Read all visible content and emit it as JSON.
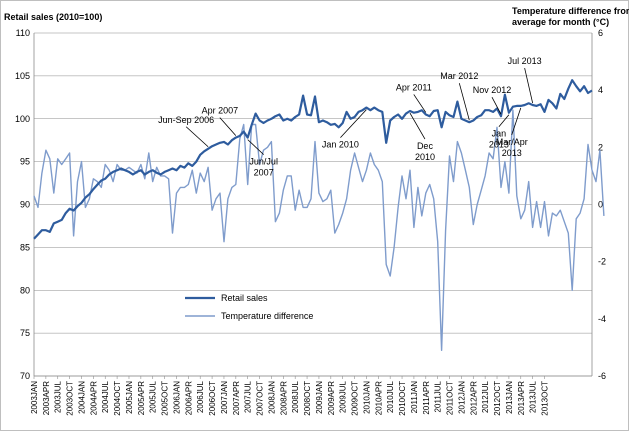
{
  "chart_data": {
    "type": "line",
    "y_left_title": "Retail sales (2010=100)",
    "y_right_title_line1": "Temperature difference from",
    "y_right_title_line2": "average for month (°C)",
    "ylim_left": [
      70,
      110
    ],
    "y_left_ticks": [
      "70",
      "75",
      "80",
      "85",
      "90",
      "95",
      "100",
      "105",
      "110"
    ],
    "ylim_right": [
      -6,
      6
    ],
    "y_right_ticks": [
      "-6",
      "-4",
      "-2",
      "0",
      "2",
      "4",
      "6"
    ],
    "x_tick_labels": [
      "2003JAN",
      "2003APR",
      "2003JUL",
      "2003OCT",
      "2004JAN",
      "2004APR",
      "2004JUL",
      "2004OCT",
      "2005JAN",
      "2005APR",
      "2005JUL",
      "2005OCT",
      "2006JAN",
      "2006APR",
      "2006JUL",
      "2006OCT",
      "2007JAN",
      "2007APR",
      "2007JUL",
      "2007OCT",
      "2008JAN",
      "2008APR",
      "2008JUL",
      "2008OCT",
      "2009JAN",
      "2009APR",
      "2009JUL",
      "2009OCT",
      "2010JAN",
      "2010APR",
      "2010JUL",
      "2010OCT",
      "2011JAN",
      "2011APR",
      "2011JUL",
      "2011OCT",
      "2012JAN",
      "2012APR",
      "2012JUL",
      "2012OCT",
      "2013JAN",
      "2013APR",
      "2013JUL",
      "2013OCT"
    ],
    "gridlines": "horizontal",
    "legend_position": "bottom-center",
    "series": [
      {
        "name": "Retail sales",
        "axis": "left",
        "color": "#2E5C9E",
        "values": [
          86.0,
          86.5,
          87.0,
          87.0,
          86.8,
          87.8,
          88.0,
          88.2,
          89.0,
          89.5,
          89.3,
          89.8,
          90.2,
          90.8,
          91.2,
          91.8,
          92.3,
          92.8,
          93.0,
          93.5,
          93.8,
          94.0,
          94.2,
          94.0,
          93.8,
          93.5,
          93.8,
          94.0,
          93.5,
          93.8,
          94.0,
          93.7,
          93.5,
          93.8,
          94.0,
          94.2,
          94.0,
          94.5,
          94.3,
          94.8,
          94.5,
          95.0,
          95.8,
          96.2,
          96.5,
          96.8,
          97.0,
          97.2,
          97.3,
          97.0,
          97.5,
          97.8,
          98.0,
          98.5,
          97.8,
          99.3,
          100.6,
          99.8,
          99.5,
          99.8,
          100.0,
          100.3,
          100.5,
          99.8,
          100.0,
          99.8,
          100.2,
          100.5,
          102.7,
          100.5,
          100.4,
          102.6,
          99.6,
          99.8,
          99.6,
          99.3,
          99.4,
          99.0,
          99.5,
          100.8,
          100.0,
          100.2,
          100.8,
          101.0,
          101.3,
          101.0,
          101.3,
          101.0,
          100.8,
          97.2,
          99.8,
          100.2,
          100.5,
          100.0,
          100.6,
          100.9,
          100.7,
          100.8,
          101.0,
          100.5,
          100.3,
          100.9,
          101.0,
          99.0,
          100.8,
          100.4,
          100.2,
          102.0,
          100.0,
          99.8,
          99.6,
          99.8,
          100.2,
          100.4,
          101.0,
          101.0,
          100.8,
          101.2,
          100.3,
          102.8,
          100.7,
          101.4,
          101.5,
          101.5,
          101.6,
          101.8,
          101.6,
          101.5,
          101.7,
          100.8,
          102.2,
          101.8,
          101.2,
          102.9,
          102.3,
          103.5,
          104.5,
          103.8,
          103.2,
          103.8,
          103.0,
          103.3
        ]
      },
      {
        "name": "Temperature difference",
        "axis": "right",
        "color": "#7F9CCC",
        "values": [
          0.3,
          -0.1,
          1.1,
          1.9,
          1.6,
          0.4,
          1.6,
          1.4,
          1.6,
          1.8,
          -1.1,
          0.8,
          1.5,
          -0.1,
          0.2,
          0.9,
          0.8,
          0.6,
          1.4,
          1.2,
          0.8,
          1.4,
          1.2,
          1.2,
          1.3,
          1.2,
          1.1,
          1.4,
          0.9,
          1.8,
          0.8,
          1.3,
          1.0,
          1.0,
          0.9,
          -1.0,
          0.4,
          0.6,
          0.6,
          0.7,
          1.2,
          0.4,
          1.1,
          0.8,
          1.3,
          -0.2,
          0.2,
          0.4,
          -1.3,
          0.2,
          0.6,
          0.7,
          2.3,
          2.8,
          0.7,
          2.8,
          2.8,
          1.4,
          1.9,
          2.0,
          2.2,
          -0.6,
          -0.3,
          0.5,
          1.0,
          1.0,
          -0.2,
          0.5,
          -0.1,
          -0.1,
          0.2,
          2.2,
          0.4,
          0.1,
          0.2,
          0.5,
          -1.0,
          -0.7,
          -0.3,
          0.2,
          1.2,
          1.8,
          1.3,
          0.8,
          1.2,
          1.8,
          1.4,
          1.2,
          0.8,
          -2.1,
          -2.5,
          -1.5,
          -0.1,
          1.0,
          0.2,
          1.2,
          -0.8,
          0.6,
          -0.4,
          0.4,
          0.7,
          0.2,
          -1.3,
          -5.1,
          -0.9,
          1.7,
          0.8,
          2.2,
          1.8,
          1.2,
          0.6,
          -0.7,
          0.0,
          0.5,
          1.0,
          1.8,
          1.6,
          2.7,
          0.6,
          1.5,
          0.4,
          3.3,
          0.3,
          -0.5,
          -0.2,
          0.8,
          -0.8,
          0.1,
          -0.8,
          0.1,
          -1.1,
          -0.3,
          -0.4,
          -0.2,
          -0.6,
          -1.0,
          -3.0,
          -0.5,
          -0.3,
          0.2,
          2.1,
          1.2,
          0.8,
          1.9,
          -0.4
        ]
      }
    ],
    "annotations": [
      {
        "text": "Jun-Sep 2006",
        "target_index": 44
      },
      {
        "text": "Apr 2007",
        "target_index": 51
      },
      {
        "text": "Jun/Jul\n2007",
        "target_index": 54
      },
      {
        "text": "Jan 2010",
        "target_index": 84
      },
      {
        "text": "Dec\n2010",
        "target_index": 95
      },
      {
        "text": "Apr 2011",
        "target_index": 99
      },
      {
        "text": "Mar 2012",
        "target_index": 110
      },
      {
        "text": "Nov 2012",
        "target_index": 118
      },
      {
        "text": "Jan\n2013",
        "target_index": 120
      },
      {
        "text": "Mar/Apr\n2013",
        "target_index": 123
      },
      {
        "text": "Jul 2013",
        "target_index": 126
      }
    ]
  }
}
